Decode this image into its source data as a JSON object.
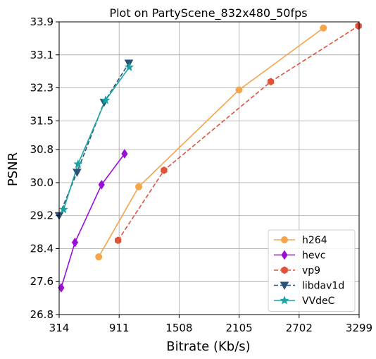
{
  "chart_data": {
    "type": "line",
    "title": "Plot on PartyScene_832x480_50fps",
    "xlabel": "Bitrate (Kb/s)",
    "ylabel": "PSNR",
    "xlim": [
      314,
      3299
    ],
    "ylim": [
      26.8,
      33.9
    ],
    "xticks": [
      314,
      911,
      1508,
      2105,
      2702,
      3299
    ],
    "xtick_labels": [
      "314",
      "911",
      "1508",
      "2105",
      "2702",
      "3299"
    ],
    "yticks": [
      26.8,
      27.6,
      28.4,
      29.2,
      30.0,
      30.8,
      31.5,
      32.3,
      33.1,
      33.9
    ],
    "ytick_labels": [
      "26.8",
      "27.6",
      "28.4",
      "29.2",
      "30.0",
      "30.8",
      "31.5",
      "32.3",
      "33.1",
      "33.9"
    ],
    "grid": true,
    "legend_position": "bottom-right",
    "series": [
      {
        "name": "h264",
        "color": "#F5A54A",
        "dash": "solid",
        "marker": "circle",
        "x": [
          708,
          1106,
          2104,
          2944
        ],
        "y": [
          28.2,
          29.9,
          32.25,
          33.75
        ]
      },
      {
        "name": "hevc",
        "color": "#9A0FD6",
        "dash": "solid",
        "marker": "diamond",
        "x": [
          334,
          472,
          736,
          965
        ],
        "y": [
          27.45,
          28.55,
          29.95,
          30.7
        ]
      },
      {
        "name": "vp9",
        "color": "#E0533A",
        "dash": "dashed",
        "marker": "hexagon",
        "x": [
          900,
          1358,
          2420,
          3293
        ],
        "y": [
          28.6,
          30.3,
          32.45,
          33.8
        ]
      },
      {
        "name": "libdav1d",
        "color": "#2B5378",
        "dash": "dashed",
        "marker": "triangle-down",
        "x": [
          314,
          492,
          762,
          1008
        ],
        "y": [
          29.2,
          30.25,
          31.95,
          32.9
        ]
      },
      {
        "name": "VVdeC",
        "color": "#1AA3A3",
        "dash": "solid",
        "marker": "star",
        "x": [
          358,
          502,
          776,
          1012
        ],
        "y": [
          29.35,
          30.45,
          32.0,
          32.8
        ]
      }
    ]
  }
}
